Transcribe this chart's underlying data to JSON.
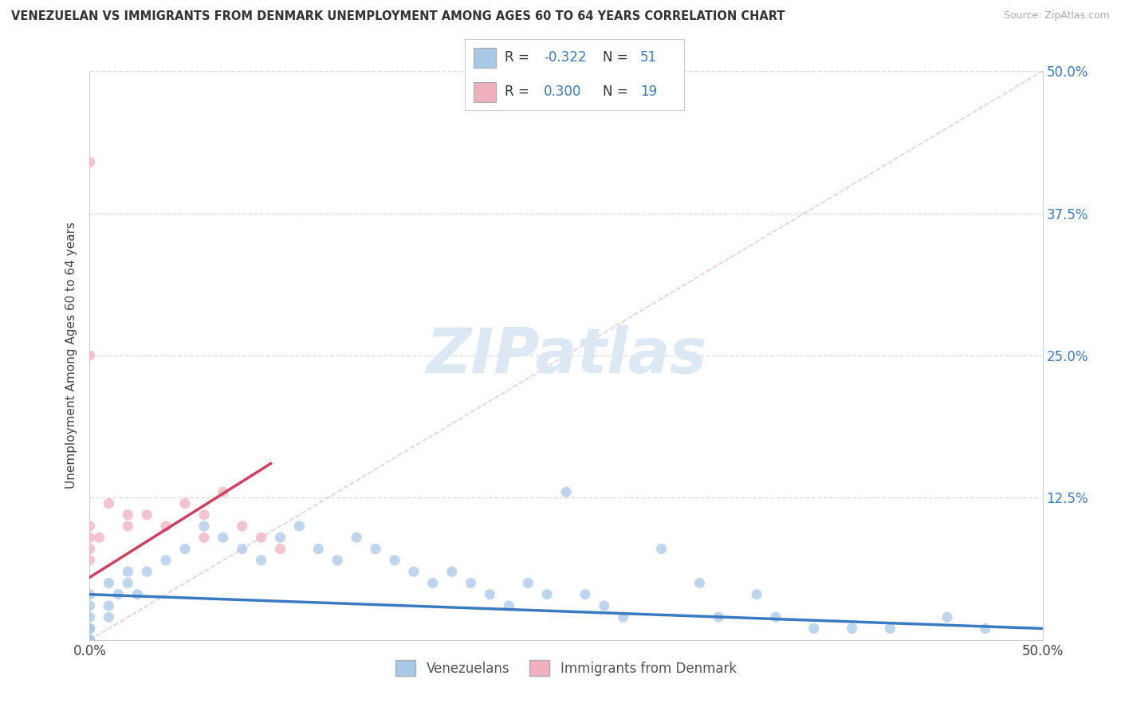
{
  "title": "VENEZUELAN VS IMMIGRANTS FROM DENMARK UNEMPLOYMENT AMONG AGES 60 TO 64 YEARS CORRELATION CHART",
  "source": "Source: ZipAtlas.com",
  "ylabel": "Unemployment Among Ages 60 to 64 years",
  "xlim": [
    0,
    0.5
  ],
  "ylim": [
    0,
    0.5
  ],
  "color_venezuelan": "#a8c8e8",
  "color_denmark": "#f0b0c0",
  "color_line_venezuelan": "#3a7abf",
  "color_line_denmark": "#d04060",
  "color_diagonal": "#e8c0c8",
  "watermark_color": "#dce8f4",
  "venezuelan_x": [
    0.0,
    0.0,
    0.0,
    0.0,
    0.0,
    0.0,
    0.0,
    0.0,
    0.01,
    0.01,
    0.01,
    0.015,
    0.02,
    0.02,
    0.025,
    0.03,
    0.04,
    0.05,
    0.06,
    0.07,
    0.08,
    0.09,
    0.1,
    0.11,
    0.12,
    0.13,
    0.14,
    0.15,
    0.16,
    0.17,
    0.18,
    0.19,
    0.2,
    0.21,
    0.22,
    0.23,
    0.24,
    0.25,
    0.26,
    0.27,
    0.28,
    0.3,
    0.32,
    0.33,
    0.35,
    0.36,
    0.38,
    0.4,
    0.42,
    0.45,
    0.47
  ],
  "venezuelan_y": [
    0.0,
    0.0,
    0.0,
    0.01,
    0.01,
    0.02,
    0.03,
    0.04,
    0.02,
    0.03,
    0.05,
    0.04,
    0.05,
    0.06,
    0.04,
    0.06,
    0.07,
    0.08,
    0.1,
    0.09,
    0.08,
    0.07,
    0.09,
    0.1,
    0.08,
    0.07,
    0.09,
    0.08,
    0.07,
    0.06,
    0.05,
    0.06,
    0.05,
    0.04,
    0.03,
    0.05,
    0.04,
    0.13,
    0.04,
    0.03,
    0.02,
    0.08,
    0.05,
    0.02,
    0.04,
    0.02,
    0.01,
    0.01,
    0.01,
    0.02,
    0.01
  ],
  "denmark_x": [
    0.0,
    0.0,
    0.0,
    0.0,
    0.0,
    0.0,
    0.005,
    0.01,
    0.02,
    0.02,
    0.03,
    0.04,
    0.05,
    0.06,
    0.06,
    0.07,
    0.08,
    0.09,
    0.1
  ],
  "denmark_y": [
    0.42,
    0.25,
    0.1,
    0.09,
    0.08,
    0.07,
    0.09,
    0.12,
    0.1,
    0.11,
    0.11,
    0.1,
    0.12,
    0.11,
    0.09,
    0.13,
    0.1,
    0.09,
    0.08
  ],
  "ven_line_x": [
    0.0,
    0.5
  ],
  "ven_line_y": [
    0.04,
    0.01
  ],
  "den_line_x": [
    0.0,
    0.095
  ],
  "den_line_y": [
    0.055,
    0.155
  ]
}
